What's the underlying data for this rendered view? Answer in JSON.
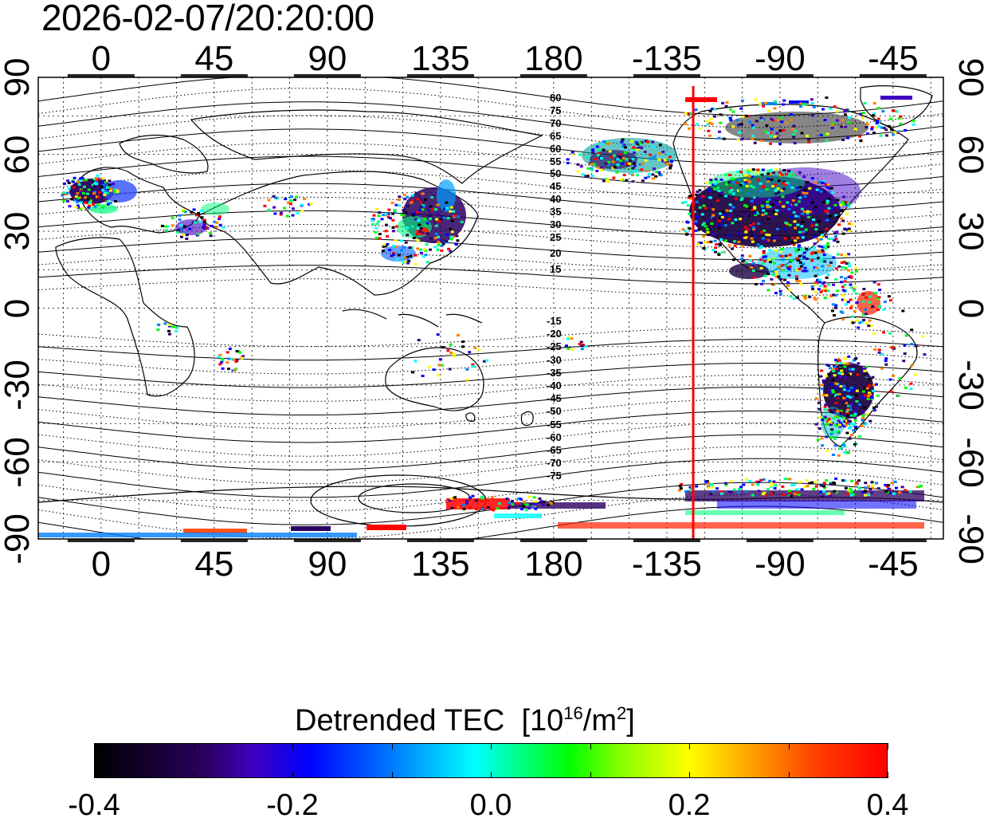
{
  "title": "2026-02-07/20:20:00",
  "longitude_ticks": [
    "0",
    "45",
    "90",
    "135",
    "180",
    "-135",
    "-90",
    "-45"
  ],
  "latitude_ticks": [
    "90",
    "60",
    "30",
    "0",
    "-30",
    "-60",
    "-90"
  ],
  "contour_labels_north": [
    "80",
    "75",
    "70",
    "65",
    "60",
    "55",
    "50",
    "45",
    "40",
    "35",
    "30",
    "25",
    "20",
    "15"
  ],
  "contour_labels_south": [
    "-15",
    "-20",
    "-25",
    "-30",
    "-35",
    "-40",
    "-45",
    "-50",
    "-55",
    "-60",
    "-65",
    "-70",
    "-75"
  ],
  "terminator_line": {
    "color": "#ff0000",
    "longitude_deg": -127
  },
  "colorbar": {
    "title": "Detrended TEC",
    "unit_prefix": "[10",
    "unit_exp1": "16",
    "unit_mid": "/m",
    "unit_exp2": "2",
    "unit_suffix": "]",
    "tick_labels": [
      "-0.4",
      "-0.2",
      "0.0",
      "0.2",
      "0.4"
    ],
    "min": -0.4,
    "max": 0.4,
    "colormap": [
      "#000000",
      "#2a0060",
      "#0000ff",
      "#00ffff",
      "#00ff00",
      "#ffff00",
      "#ff0000"
    ]
  }
}
